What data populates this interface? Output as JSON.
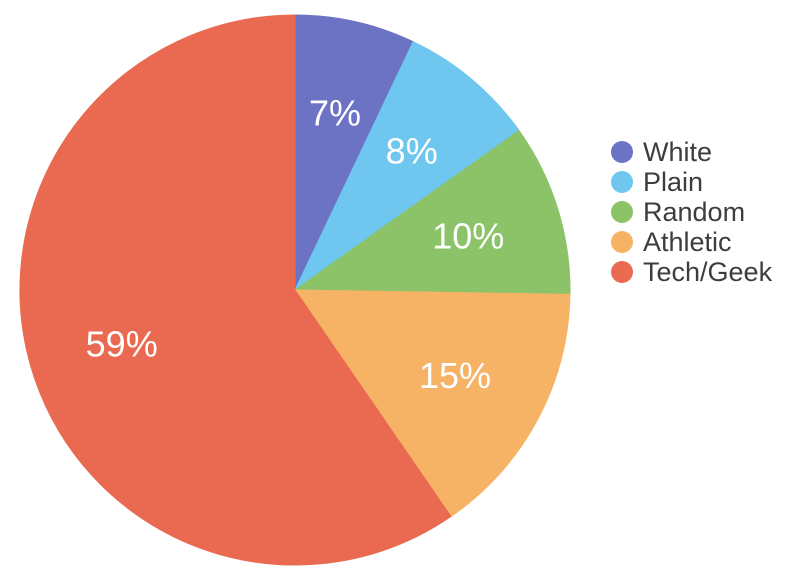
{
  "chart_data": {
    "type": "pie",
    "labels": [
      "White",
      "Plain",
      "Random",
      "Athletic",
      "Tech/Geek"
    ],
    "values": [
      7,
      8,
      10,
      15,
      59
    ],
    "value_labels": [
      "7%",
      "8%",
      "10%",
      "15%",
      "59%"
    ],
    "colors": [
      "#6d73c4",
      "#6fc7f0",
      "#8cc368",
      "#f6b365",
      "#e96a50"
    ],
    "start_angle_deg": 0,
    "direction": "clockwise",
    "legend_position": "right",
    "background_color": "#ffffff",
    "slice_label_color": "#ffffff",
    "legend_text_color": "#3d3d3d",
    "title": "",
    "grid": false
  }
}
